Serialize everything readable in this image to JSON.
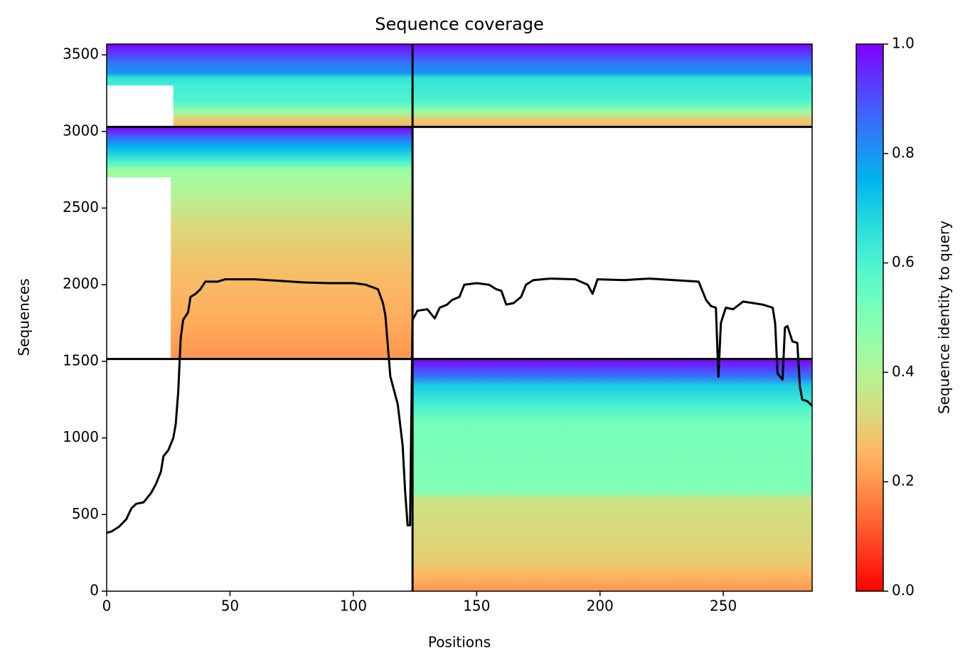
{
  "chart_data": {
    "type": "coverage",
    "title": "Sequence coverage",
    "x_label": "Positions",
    "y_label": "Sequences",
    "xlim": [
      0,
      286
    ],
    "ylim": [
      0,
      3570
    ],
    "xticks": [
      0,
      50,
      100,
      150,
      200,
      250
    ],
    "yticks": [
      0,
      500,
      1000,
      1500,
      2000,
      2500,
      3000,
      3500
    ],
    "colormap": "rainbow_r",
    "colorbar": {
      "label": "Sequence identity to query",
      "lim": [
        0,
        1
      ],
      "ticks": [
        {
          "value": 0,
          "label": "0.0"
        },
        {
          "value": 0.2,
          "label": "0.2"
        },
        {
          "value": 0.4,
          "label": "0.4"
        },
        {
          "value": 0.6,
          "label": "0.6"
        },
        {
          "value": 0.8,
          "label": "0.8"
        },
        {
          "value": 1,
          "label": "1.0"
        }
      ]
    },
    "blocks": [
      {
        "x": [
          0,
          124
        ],
        "y": [
          3300,
          3570
        ],
        "identity": [
          [
            3300,
            0.62
          ],
          [
            3350,
            0.65
          ],
          [
            3380,
            0.8
          ],
          [
            3450,
            0.85
          ],
          [
            3570,
            1.0
          ]
        ]
      },
      {
        "x": [
          27,
          124
        ],
        "y": [
          3030,
          3300
        ],
        "identity": [
          [
            3030,
            0.25
          ],
          [
            3080,
            0.3
          ],
          [
            3130,
            0.45
          ],
          [
            3200,
            0.6
          ],
          [
            3300,
            0.62
          ]
        ]
      },
      {
        "x": [
          124,
          286
        ],
        "y": [
          3030,
          3570
        ],
        "identity": [
          [
            3030,
            0.25
          ],
          [
            3080,
            0.3
          ],
          [
            3130,
            0.45
          ],
          [
            3200,
            0.6
          ],
          [
            3350,
            0.65
          ],
          [
            3380,
            0.8
          ],
          [
            3450,
            0.85
          ],
          [
            3570,
            1.0
          ]
        ]
      },
      {
        "x": [
          0,
          124
        ],
        "y": [
          2700,
          3030
        ],
        "identity": [
          [
            2700,
            0.43
          ],
          [
            2750,
            0.45
          ],
          [
            2800,
            0.6
          ],
          [
            2900,
            0.75
          ],
          [
            2950,
            0.85
          ],
          [
            3030,
            1.0
          ]
        ]
      },
      {
        "x": [
          26,
          124
        ],
        "y": [
          1515,
          2700
        ],
        "identity": [
          [
            1515,
            0.2
          ],
          [
            1800,
            0.24
          ],
          [
            2100,
            0.27
          ],
          [
            2400,
            0.33
          ],
          [
            2600,
            0.4
          ],
          [
            2700,
            0.43
          ]
        ]
      },
      {
        "x": [
          124,
          286
        ],
        "y": [
          0,
          1515
        ],
        "identity": [
          [
            0,
            0.2
          ],
          [
            100,
            0.25
          ],
          [
            200,
            0.3
          ],
          [
            600,
            0.35
          ],
          [
            650,
            0.5
          ],
          [
            1100,
            0.52
          ],
          [
            1200,
            0.6
          ],
          [
            1340,
            0.7
          ],
          [
            1400,
            0.85
          ],
          [
            1515,
            1.0
          ]
        ]
      }
    ],
    "vlines": [
      124
    ],
    "hlines": [
      1515,
      3030
    ],
    "line": {
      "color": "#000000",
      "x": [
        0,
        2,
        5,
        8,
        10,
        12,
        15,
        18,
        20,
        22,
        23,
        25,
        27,
        28,
        29,
        30,
        31,
        33,
        34,
        36,
        38,
        40,
        45,
        48,
        60,
        70,
        80,
        90,
        100,
        105,
        110,
        112,
        113,
        115,
        118,
        120,
        121,
        122,
        123,
        124,
        126,
        130,
        133,
        135,
        138,
        140,
        143,
        145,
        150,
        155,
        158,
        160,
        162,
        165,
        168,
        170,
        173,
        180,
        190,
        195,
        197,
        199,
        210,
        220,
        230,
        240,
        243,
        245,
        247,
        248,
        249,
        251,
        254,
        258,
        262,
        266,
        270,
        271,
        272,
        274,
        275,
        276,
        278,
        280,
        281,
        282,
        284,
        286
      ],
      "y": [
        380,
        390,
        420,
        470,
        540,
        570,
        580,
        640,
        700,
        780,
        880,
        920,
        1000,
        1090,
        1300,
        1650,
        1770,
        1820,
        1920,
        1940,
        1970,
        2020,
        2020,
        2035,
        2035,
        2025,
        2015,
        2010,
        2010,
        2000,
        1970,
        1880,
        1800,
        1400,
        1220,
        950,
        650,
        430,
        430,
        1770,
        1830,
        1840,
        1780,
        1850,
        1870,
        1900,
        1920,
        2000,
        2010,
        2000,
        1970,
        1960,
        1870,
        1880,
        1920,
        2000,
        2030,
        2040,
        2035,
        2000,
        1940,
        2035,
        2030,
        2040,
        2030,
        2020,
        1900,
        1860,
        1850,
        1400,
        1750,
        1850,
        1840,
        1890,
        1880,
        1870,
        1850,
        1750,
        1420,
        1380,
        1720,
        1730,
        1630,
        1620,
        1340,
        1250,
        1240,
        1210
      ]
    }
  }
}
